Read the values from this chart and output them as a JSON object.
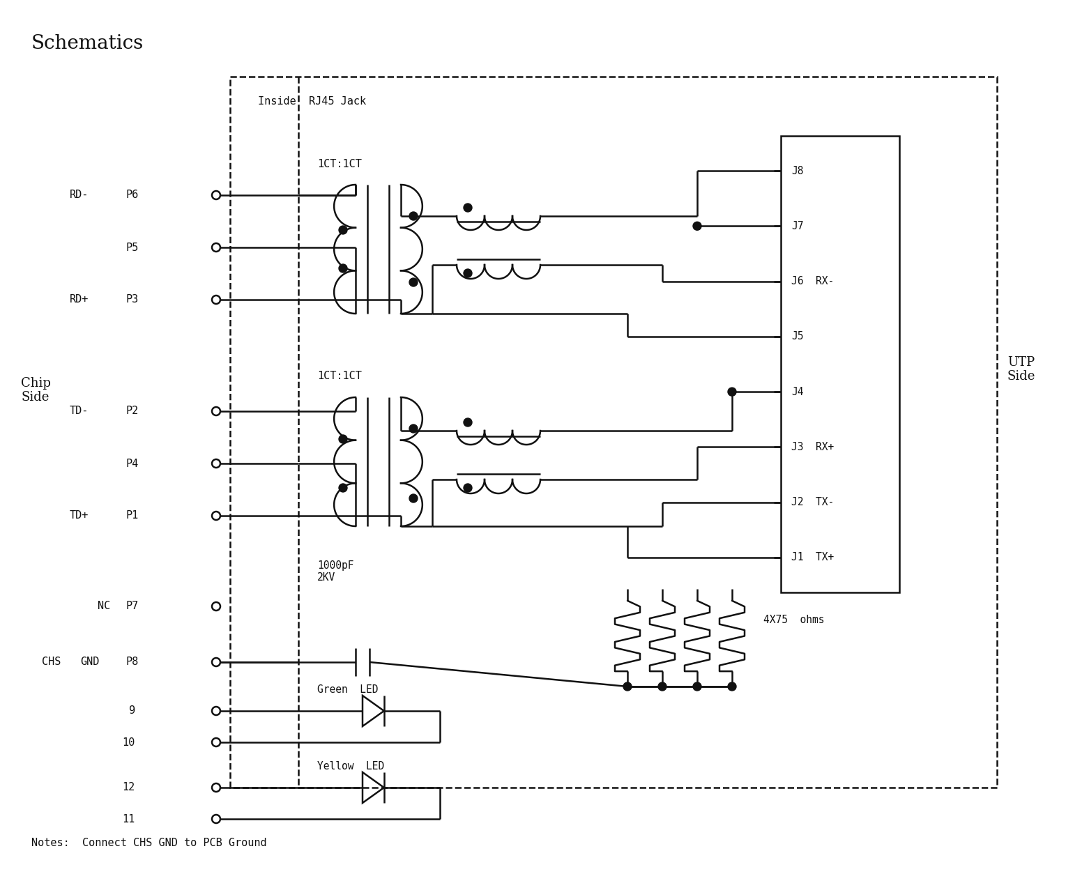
{
  "title": "Schematics",
  "notes": "Notes:  Connect CHS GND to PCB Ground",
  "inside_label": "Inside  RJ45 Jack",
  "chip_side_label": "Chip\nSide",
  "utp_side_label": "UTP\nSide",
  "transformer1_label": "1CT:1CT",
  "transformer2_label": "1CT:1CT",
  "cap_label": "1000pF\n2KV",
  "resistor_label": "4X75  ohms",
  "green_led_label": "Green  LED",
  "yellow_led_label": "Yellow  LED",
  "bg_color": "#ffffff",
  "line_color": "#111111",
  "font_color": "#111111"
}
